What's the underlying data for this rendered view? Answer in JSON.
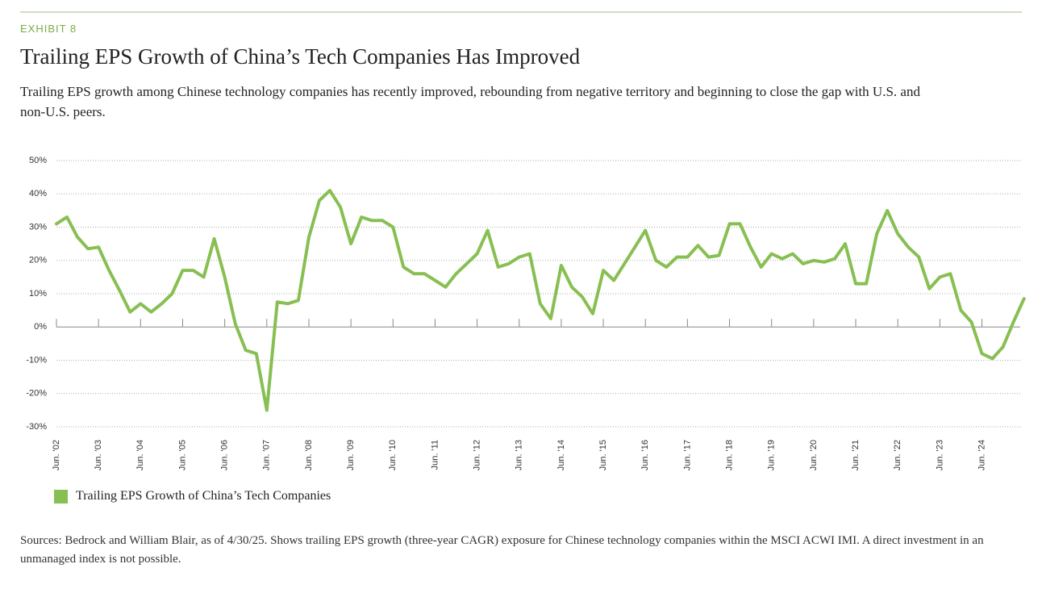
{
  "chart_data": {
    "type": "line",
    "label": "EXHIBIT 8",
    "title": "Trailing EPS Growth of China’s Tech Companies Has Improved",
    "subtitle": "Trailing EPS growth among Chinese technology companies has recently improved, rebounding from negative territory and beginning to close the gap with U.S. and non-U.S. peers.",
    "source": "Sources: Bedrock and William Blair, as of 4/30/25. Shows trailing EPS growth (three-year CAGR) exposure for Chinese technology companies within the MSCI ACWI IMI. A direct investment in an unmanaged index is not possible.",
    "categories": [
      "Jun. '02",
      null,
      null,
      null,
      "Jun. '03",
      null,
      null,
      null,
      "Jun. '04",
      null,
      null,
      null,
      "Jun. '05",
      null,
      null,
      null,
      "Jun. '06",
      null,
      null,
      null,
      "Jun. '07",
      null,
      null,
      null,
      "Jun. '08",
      null,
      null,
      null,
      "Jun. '09",
      null,
      null,
      null,
      "Jun. '10",
      null,
      null,
      null,
      "Jun. '11",
      null,
      null,
      null,
      "Jun. '12",
      null,
      null,
      null,
      "Jun. '13",
      null,
      null,
      null,
      "Jun. '14",
      null,
      null,
      null,
      "Jun. '15",
      null,
      null,
      null,
      "Jun. '16",
      null,
      null,
      null,
      "Jun. '17",
      null,
      null,
      null,
      "Jun. '18",
      null,
      null,
      null,
      "Jun. '19",
      null,
      null,
      null,
      "Jun. '20",
      null,
      null,
      null,
      "Jun. '21",
      null,
      null,
      null,
      "Jun. '22",
      null,
      null,
      null,
      "Jun. '23",
      null,
      null,
      null,
      "Jun. '24",
      null,
      null,
      null,
      null
    ],
    "series": [
      {
        "name": "Trailing EPS Growth of China’s Tech Companies",
        "color": "#88bf52",
        "values": [
          31,
          33,
          27,
          23.5,
          24,
          17,
          11,
          4.5,
          7,
          4.5,
          7,
          10,
          17,
          17,
          15,
          26.5,
          15,
          1,
          -7,
          -8,
          -25,
          7.5,
          7,
          8,
          27,
          38,
          41,
          36,
          25,
          33,
          32,
          32,
          30,
          18,
          16,
          16,
          14,
          12,
          16,
          19,
          22,
          29,
          18,
          19,
          21,
          22,
          7,
          2.5,
          18.5,
          12,
          9,
          4,
          17,
          14,
          19,
          24,
          29,
          20,
          18,
          21,
          21,
          24.5,
          21,
          21.5,
          31,
          31,
          24,
          18,
          22,
          20.5,
          22,
          19,
          20,
          19.5,
          20.5,
          25,
          13,
          13,
          28,
          35,
          28,
          24,
          21,
          11.5,
          15,
          16,
          5,
          1.5,
          -8,
          -9.5,
          -6,
          1.5,
          8.5
        ]
      }
    ],
    "ylim": [
      -30,
      50
    ],
    "yticks": [
      {
        "value": -30,
        "label": "-30%"
      },
      {
        "value": -20,
        "label": "-20%"
      },
      {
        "value": -10,
        "label": "-10%"
      },
      {
        "value": 0,
        "label": "0%"
      },
      {
        "value": 10,
        "label": "10%"
      },
      {
        "value": 20,
        "label": "20%"
      },
      {
        "value": 30,
        "label": "30%"
      },
      {
        "value": 40,
        "label": "40%"
      },
      {
        "value": 50,
        "label": "50%"
      }
    ],
    "grid": true
  }
}
